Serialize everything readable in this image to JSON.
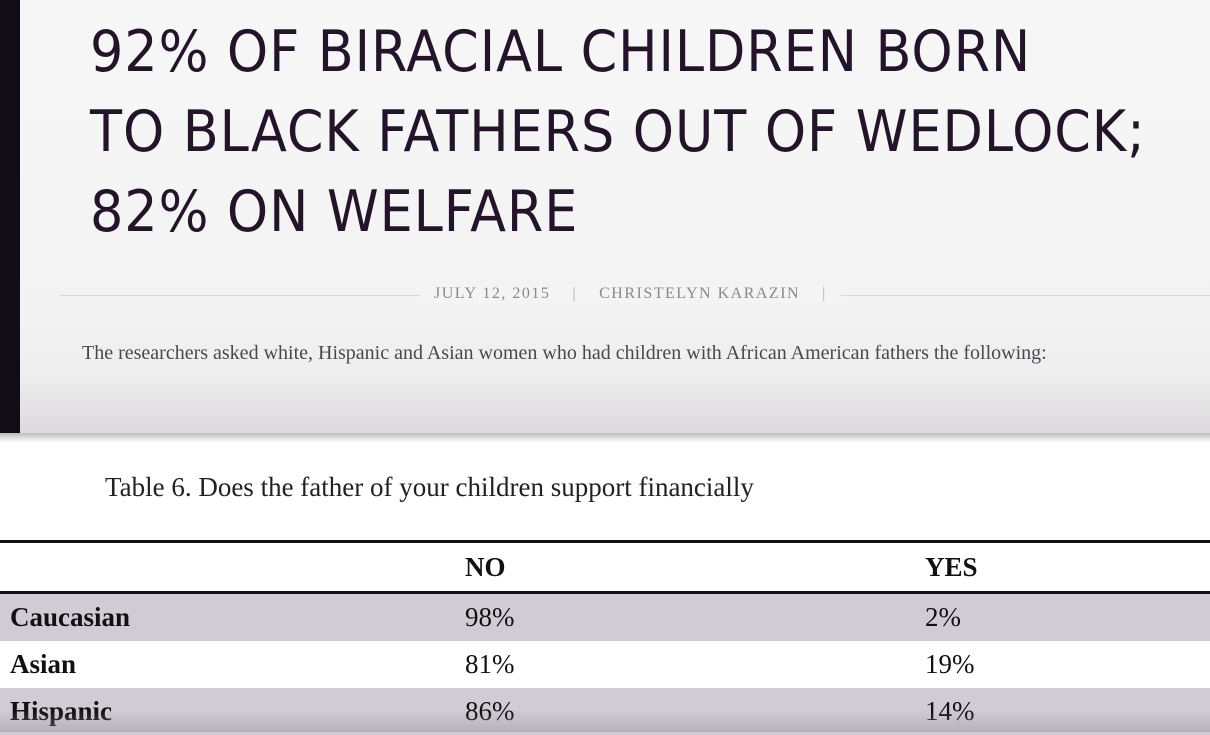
{
  "article": {
    "headline_lines": [
      "92% OF BIRACIAL CHILDREN BORN",
      "TO BLACK FATHERS OUT OF WEDLOCK;",
      "82% ON WELFARE"
    ],
    "date": "JULY 12, 2015",
    "author": "CHRISTELYN KARAZIN",
    "separator": "|",
    "intro": "The researchers asked white, Hispanic and Asian women who had children with African American fathers the following:"
  },
  "table": {
    "caption": "Table 6. Does the father of your children support financially",
    "headers": [
      "",
      "NO",
      "YES"
    ],
    "rows": [
      {
        "group": "Caucasian",
        "no": "98%",
        "yes": "2%"
      },
      {
        "group": "Asian",
        "no": "81%",
        "yes": "19%"
      },
      {
        "group": "Hispanic",
        "no": "86%",
        "yes": "14%"
      }
    ]
  },
  "colors": {
    "headline": "#24142a",
    "row_shade": "#d1cbd6",
    "left_bar": "#120d14"
  }
}
